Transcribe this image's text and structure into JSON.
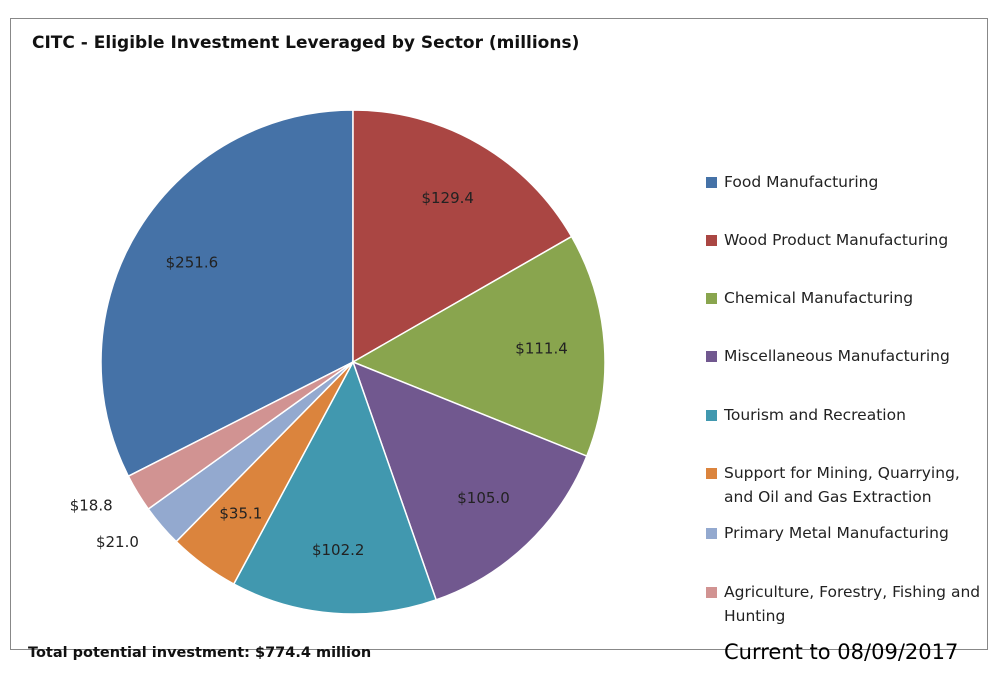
{
  "chart_data": {
    "type": "pie",
    "title": "CITC - Eligible Investment Leveraged by Sector (millions)",
    "categories": [
      "Food Manufacturing",
      "Wood Product Manufacturing",
      "Chemical Manufacturing",
      "Miscellaneous Manufacturing",
      "Tourism and Recreation",
      "Support for Mining, Quarrying, and Oil and Gas Extraction",
      "Primary Metal Manufacturing",
      "Agriculture, Forestry, Fishing and Hunting"
    ],
    "values": [
      251.6,
      129.4,
      111.4,
      105.0,
      102.2,
      35.1,
      21.0,
      18.8
    ],
    "value_labels": [
      "$251.6",
      "$129.4",
      "$111.4",
      "$105.0",
      "$102.2",
      "$35.1",
      "$21.0",
      "$18.8"
    ],
    "colors": [
      "#4572a7",
      "#aa4643",
      "#89a54e",
      "#71588f",
      "#4198af",
      "#db843d",
      "#93a9cf",
      "#d19392"
    ],
    "legend": "right",
    "annotations": [
      "Total potential investment: $774.4 million",
      "Current to 08/09/2017"
    ]
  }
}
